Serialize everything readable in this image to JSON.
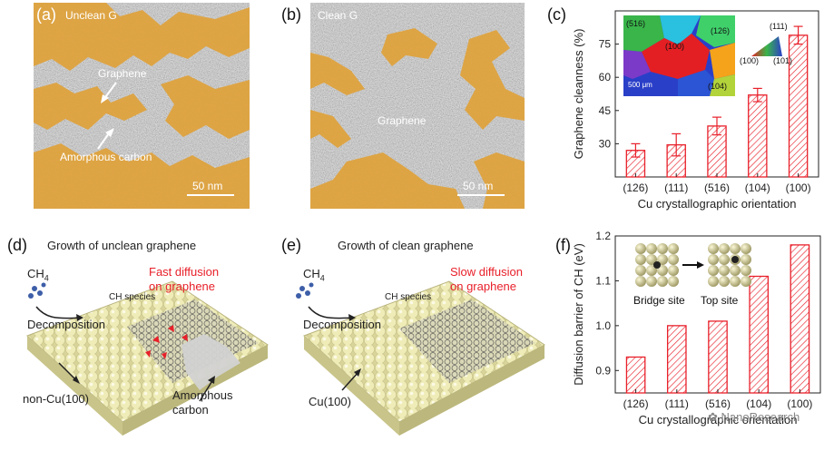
{
  "panels": {
    "a": {
      "tag": "(a)",
      "title": "Unclean G",
      "label_graphene": "Graphene",
      "label_amorphous": "Amorphous carbon",
      "scale": "50 nm"
    },
    "b": {
      "tag": "(b)",
      "title": "Clean G",
      "label_graphene": "Graphene",
      "scale": "50 nm"
    },
    "d": {
      "tag": "(d)",
      "title": "Growth of unclean graphene",
      "ch4_main": "CH",
      "ch4_sub": "4",
      "ch_species": "CH species",
      "decomposition": "Decomposition",
      "diffusion_line1": "Fast diffusion",
      "diffusion_line2": "on graphene",
      "substrate": "non-Cu(100)",
      "amorphous_line1": "Amorphous",
      "amorphous_line2": "carbon"
    },
    "e": {
      "tag": "(e)",
      "title": "Growth of clean graphene",
      "ch4_main": "CH",
      "ch4_sub": "4",
      "ch_species": "CH species",
      "decomposition": "Decomposition",
      "diffusion_line1": "Slow diffusion",
      "diffusion_line2": "on graphene",
      "substrate": "Cu(100)"
    },
    "f_inset": {
      "bridge": "Bridge site",
      "top": "Top site"
    },
    "c_inset": {
      "labels": [
        "(516)",
        "(100)",
        "(126)",
        "(104)"
      ],
      "scale": "500 μm",
      "triangle": [
        "(111)",
        "(100)",
        "(101)"
      ]
    }
  },
  "watermark": "NanoResearch",
  "colors": {
    "bar": "#e8202a",
    "overlay": "#e0a23a",
    "cu_atom": "#ece9b0"
  },
  "chart_data": [
    {
      "type": "bar",
      "panel_tag": "(c)",
      "categories": [
        "(126)",
        "(111)",
        "(516)",
        "(104)",
        "(100)"
      ],
      "values": [
        27,
        29.5,
        38,
        52,
        79
      ],
      "errors": [
        3,
        5,
        4,
        3,
        4
      ],
      "xlabel": "Cu crystallographic orientation",
      "ylabel": "Graphene cleanness (%)",
      "ylim": [
        15,
        90
      ],
      "yticks": [
        30,
        45,
        60,
        75
      ],
      "hatch": true
    },
    {
      "type": "bar",
      "panel_tag": "(f)",
      "categories": [
        "(126)",
        "(111)",
        "(516)",
        "(104)",
        "(100)"
      ],
      "values": [
        0.93,
        1.0,
        1.01,
        1.11,
        1.18
      ],
      "xlabel": "Cu crystallographic orientation",
      "ylabel": "Diffusion barrier of CH (eV)",
      "ylim": [
        0.85,
        1.2
      ],
      "yticks": [
        0.9,
        1.0,
        1.1,
        1.2
      ],
      "hatch": true
    }
  ]
}
